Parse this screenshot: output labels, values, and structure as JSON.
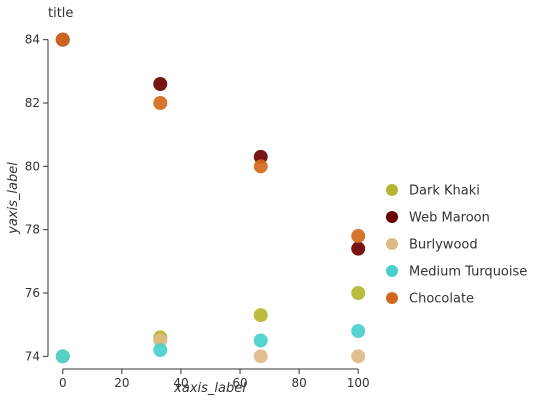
{
  "chart_data": {
    "type": "scatter",
    "title": "title",
    "xlabel": "xaxis_label",
    "ylabel": "yaxis_label",
    "xlim": [
      -5,
      105
    ],
    "ylim": [
      73.6,
      84.4
    ],
    "xticks": [
      0,
      20,
      40,
      60,
      80,
      100
    ],
    "yticks": [
      74,
      76,
      78,
      80,
      82,
      84
    ],
    "grid": false,
    "legend_position": "right",
    "series": [
      {
        "name": "Dark Khaki",
        "color": "#b5b52f",
        "x": [
          0,
          33,
          67,
          100
        ],
        "y": [
          74.0,
          74.6,
          75.3,
          76.0
        ]
      },
      {
        "name": "Web Maroon",
        "color": "#6b0000",
        "x": [
          0,
          33,
          67,
          100
        ],
        "y": [
          84.0,
          82.6,
          80.3,
          77.4
        ]
      },
      {
        "name": "Burlywood",
        "color": "#deb887",
        "x": [
          0,
          33,
          67,
          100
        ],
        "y": [
          74.0,
          74.5,
          74.0,
          74.0
        ]
      },
      {
        "name": "Medium Turquoise",
        "color": "#48d1cc",
        "x": [
          0,
          33,
          67,
          100
        ],
        "y": [
          74.0,
          74.2,
          74.5,
          74.8
        ]
      },
      {
        "name": "Chocolate",
        "color": "#d2691e",
        "x": [
          0,
          33,
          67,
          100
        ],
        "y": [
          84.0,
          82.0,
          80.0,
          77.8
        ]
      }
    ]
  }
}
